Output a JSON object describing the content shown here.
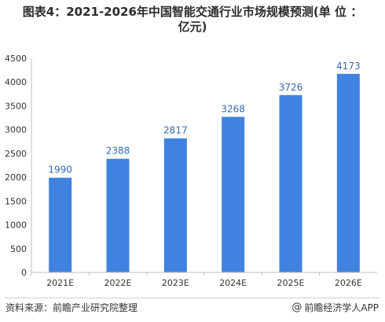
{
  "title": {
    "line1": "图表4：2021-2026年中国智能交通行业市场规模预测(单 位 ：",
    "line2": "亿元)"
  },
  "footer": {
    "source": "资料来源：前瞻产业研究院整理",
    "brand_icon": "@",
    "brand": "前瞻经济学人APP"
  },
  "colors": {
    "bar": "#3f82e0",
    "label": "#3569b4",
    "axis_text": "#333333",
    "grid": "#d9d9d9"
  },
  "chart_data": {
    "type": "bar",
    "title": "图表4：2021-2026年中国智能交通行业市场规模预测(单 位 ：亿元)",
    "categories": [
      "2021E",
      "2022E",
      "2023E",
      "2024E",
      "2025E",
      "2026E"
    ],
    "values": [
      1990,
      2388,
      2817,
      3268,
      3726,
      4173
    ],
    "ylim": [
      0,
      4500
    ],
    "yticks": [
      0,
      500,
      1000,
      1500,
      2000,
      2500,
      3000,
      3500,
      4000,
      4500
    ],
    "grid": false,
    "legend": "none"
  }
}
